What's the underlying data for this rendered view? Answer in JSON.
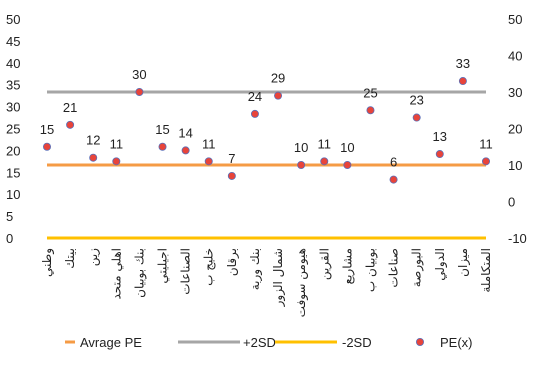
{
  "chart_data": {
    "type": "line",
    "categories": [
      "وطني",
      "بيتك",
      "زين",
      "اهلي متحد",
      "بنك بوبيان",
      "اجيليتي",
      "الصناعات",
      "خليج ب",
      "برقان",
      "بنك وربة",
      "شمال الزور",
      "هيومن سوفت",
      "القرين",
      "مشاريع",
      "بوبيان ب",
      "صناعات",
      "البورصة",
      "الدولي",
      "ميزان",
      "المتكاملة"
    ],
    "y_left": {
      "min": 0,
      "max": 50,
      "step": 5
    },
    "y_right": {
      "min": -10,
      "max": 50,
      "step": 10
    },
    "series": [
      {
        "name": "Avrage PE",
        "type": "line",
        "axis": "right",
        "color": "#F59B45",
        "value": 10
      },
      {
        "name": "+2SD",
        "type": "line",
        "axis": "right",
        "color": "#A6A6A6",
        "value": 30
      },
      {
        "name": "-2SD",
        "type": "line",
        "axis": "right",
        "color": "#FFC000",
        "value": -10
      },
      {
        "name": "PE(x)",
        "type": "scatter",
        "axis": "right",
        "color": "#E8443A",
        "values": [
          15,
          21,
          12,
          11,
          30,
          15,
          14,
          11,
          7,
          24,
          29,
          10,
          11,
          10,
          25,
          6,
          23,
          13,
          33,
          11
        ],
        "labels": [
          "15",
          "21",
          "12",
          "11",
          "30",
          "15",
          "14",
          "11",
          "7",
          "24",
          "29",
          "10",
          "11",
          "10",
          "25",
          "6",
          "23",
          "13",
          "33",
          "11"
        ]
      }
    ],
    "legend_position": "bottom",
    "grid": false
  }
}
